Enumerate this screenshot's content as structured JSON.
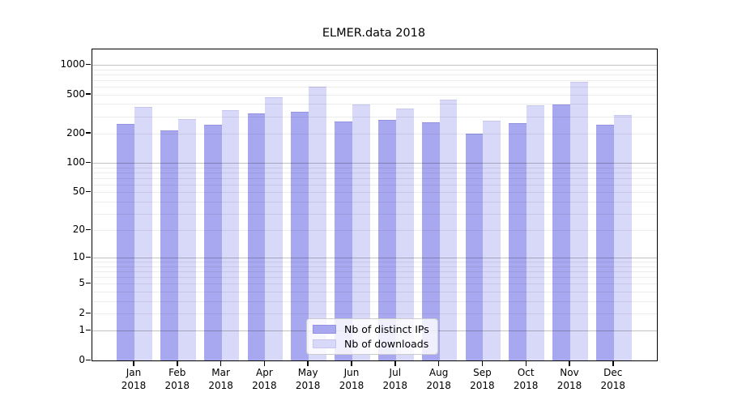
{
  "title": "ELMER.data 2018",
  "legend": {
    "items": [
      {
        "label": "Nb of distinct IPs",
        "color": "#a8a8f0",
        "edge": "#9393e0"
      },
      {
        "label": "Nb of downloads",
        "color": "#d8d8f8",
        "edge": "#c6c6ee"
      }
    ]
  },
  "chart_data": {
    "type": "bar",
    "title": "ELMER.data 2018",
    "categories": [
      "Jan",
      "Feb",
      "Mar",
      "Apr",
      "May",
      "Jun",
      "Jul",
      "Aug",
      "Sep",
      "Oct",
      "Nov",
      "Dec"
    ],
    "year_label": "2018",
    "series": [
      {
        "name": "Nb of distinct IPs",
        "color": "#a8a8f0",
        "edge": "#9393e0",
        "values": [
          246,
          212,
          242,
          315,
          327,
          261,
          271,
          256,
          195,
          253,
          388,
          242
        ]
      },
      {
        "name": "Nb of downloads",
        "color": "#d8d8f8",
        "edge": "#c6c6ee",
        "values": [
          367,
          276,
          340,
          460,
          589,
          388,
          350,
          432,
          267,
          381,
          664,
          304
        ]
      }
    ],
    "y_axis": {
      "scale": "log1p",
      "tick_values": [
        0,
        1,
        2,
        5,
        10,
        20,
        50,
        100,
        200,
        500,
        1000
      ],
      "tick_labels": [
        "0",
        "1",
        "2",
        "5",
        "10",
        "20",
        "50",
        "100",
        "200",
        "500",
        "1000"
      ],
      "ylim": [
        0,
        1435
      ],
      "major_grid_values": [
        1,
        10,
        100,
        1000
      ]
    },
    "grid": {
      "major_on": true,
      "minor_on": true
    },
    "legend_position": "lower center"
  }
}
